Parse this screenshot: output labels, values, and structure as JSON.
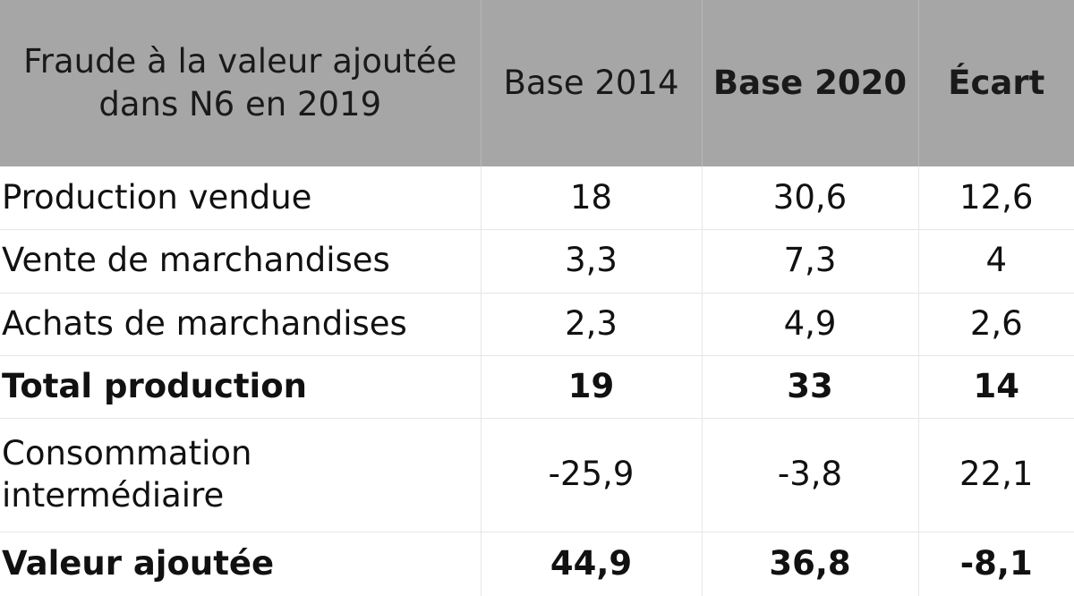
{
  "table": {
    "header": {
      "label_line1": "Fraude à la valeur ajoutée",
      "label_line2": "dans N6 en 2019",
      "col_base2014": "Base 2014",
      "col_base2020": "Base 2020",
      "col_ecart": "Écart"
    },
    "rows": [
      {
        "label": "Production vendue",
        "base2014": "18",
        "base2020": "30,6",
        "ecart": "12,6"
      },
      {
        "label": "Vente de marchandises",
        "base2014": "3,3",
        "base2020": "7,3",
        "ecart": "4"
      },
      {
        "label": "Achats de marchandises",
        "base2014": "2,3",
        "base2020": "4,9",
        "ecart": "2,6"
      },
      {
        "label": "Total production",
        "base2014": "19",
        "base2020": "33",
        "ecart": "14"
      },
      {
        "label_line1": "Consommation",
        "label_line2": "intermédiaire",
        "base2014": "-25,9",
        "base2020": "-3,8",
        "ecart": "22,1"
      },
      {
        "label": "Valeur ajoutée",
        "base2014": "44,9",
        "base2020": "36,8",
        "ecart": "-8,1"
      }
    ]
  }
}
